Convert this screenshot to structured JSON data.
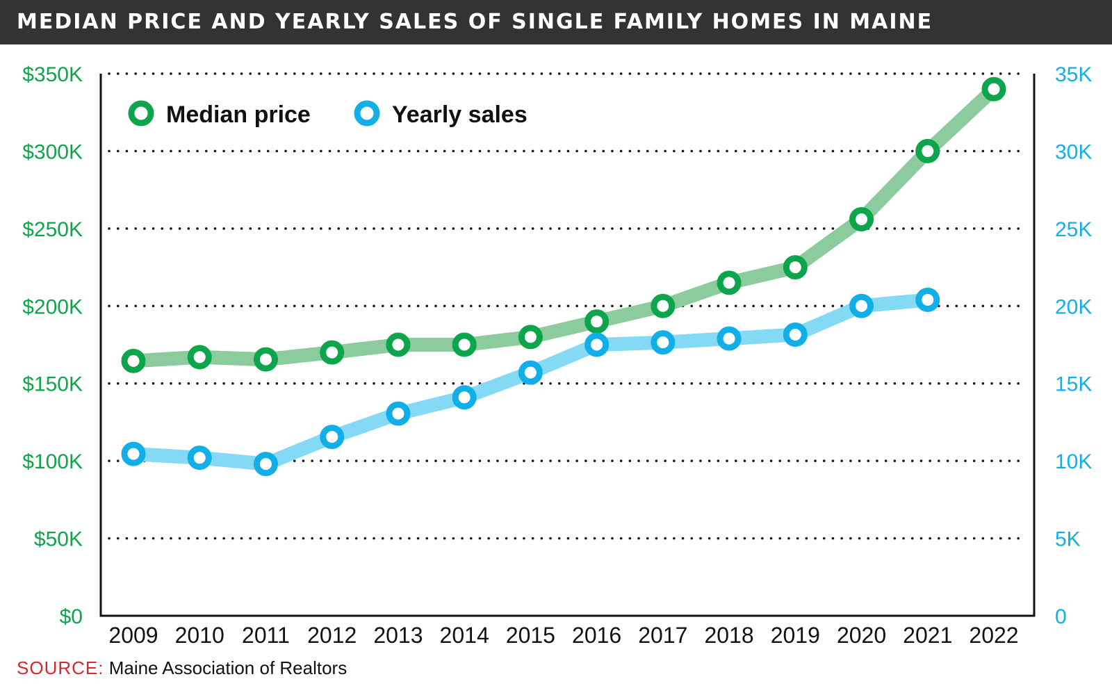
{
  "colors": {
    "price_line": "#8BCB9D",
    "price_marker": "#0DA54B",
    "sales_line": "#84D9F4",
    "sales_marker": "#12AEE8",
    "title_bg": "#333333",
    "source_label": "#D7262E"
  },
  "source": {
    "label": "SOURCE:",
    "text": "Maine Association of Realtors"
  },
  "chart_data": {
    "type": "line",
    "title": "MEDIAN PRICE AND YEARLY SALES OF SINGLE FAMILY HOMES IN MAINE",
    "x": [
      "2009",
      "2010",
      "2011",
      "2012",
      "2013",
      "2014",
      "2015",
      "2016",
      "2017",
      "2018",
      "2019",
      "2020",
      "2021",
      "2022"
    ],
    "series": [
      {
        "name": "Median price",
        "axis": "left",
        "values": [
          164500,
          167000,
          165500,
          170000,
          175000,
          175000,
          180000,
          190000,
          200000,
          215000,
          225000,
          256000,
          300000,
          340000
        ]
      },
      {
        "name": "Yearly sales",
        "axis": "right",
        "values": [
          10450,
          10200,
          9800,
          11550,
          13050,
          14100,
          15700,
          17500,
          17650,
          17900,
          18150,
          20000,
          20400,
          null
        ]
      }
    ],
    "y_left": {
      "ylim": [
        0,
        350000
      ],
      "ticks": [
        0,
        50000,
        100000,
        150000,
        200000,
        250000,
        300000,
        350000
      ],
      "tick_labels": [
        "$0",
        "$50K",
        "$100K",
        "$150K",
        "$200K",
        "$250K",
        "$300K",
        "$350K"
      ]
    },
    "y_right": {
      "ylim": [
        0,
        35000
      ],
      "ticks": [
        0,
        5000,
        10000,
        15000,
        20000,
        25000,
        30000,
        35000
      ],
      "tick_labels": [
        "0",
        "5K",
        "10K",
        "15K",
        "20K",
        "25K",
        "30K",
        "35K"
      ]
    },
    "grid": "horizontal dotted",
    "legend": {
      "placement": "top-left",
      "items": [
        "Median price",
        "Yearly sales"
      ]
    }
  }
}
